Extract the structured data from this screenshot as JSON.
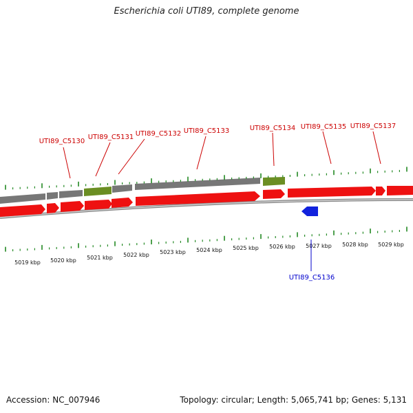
{
  "title": "Escherichia coli UTI89, complete genome",
  "accession": "Accession: NC_007946",
  "summary": "Topology: circular; Length: 5,065,741 bp; Genes: 5,131",
  "colors": {
    "forward_gene": "#ee1111",
    "reverse_gene": "#1122dd",
    "cds_track": "#777777",
    "rna_feature": "#6b8e23",
    "backbone": "#888888",
    "ticks": "#228822",
    "fwd_label": "#cc0000",
    "rev_label": "#0000cc"
  },
  "scale_labels": [
    "5019 kbp",
    "5020 kbp",
    "5021 kbp",
    "5022 kbp",
    "5023 kbp",
    "5024 kbp",
    "5025 kbp",
    "5026 kbp",
    "5027 kbp",
    "5028 kbp",
    "5029 kbp"
  ],
  "forward_gene_labels": [
    "UTI89_C5130",
    "UTI89_C5131",
    "UTI89_C5132",
    "UTI89_C5133",
    "UTI89_C5134",
    "UTI89_C5135",
    "UTI89_C5137"
  ],
  "reverse_gene_labels": [
    "UTI89_C5136"
  ]
}
